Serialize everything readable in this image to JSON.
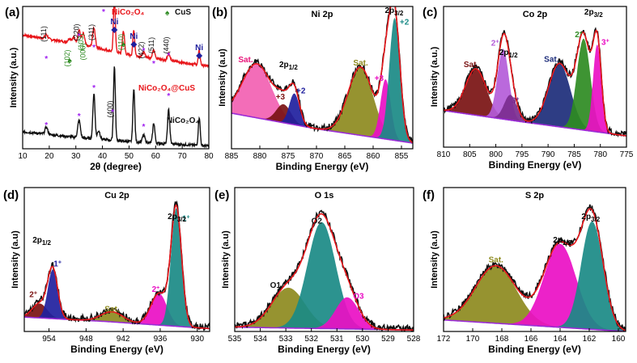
{
  "colors": {
    "red": "#e8161b",
    "black": "#111111",
    "magenta": "#ea0fc4",
    "green": "#2e8b22",
    "blue": "#1f1f9e",
    "darkred": "#7a1212",
    "olive": "#8d8a1e",
    "teal": "#1a8a86",
    "purple": "#7b2d8f",
    "navy": "#1c2c7a",
    "pink": "#f6a1c6",
    "violet": "#b45cd9",
    "lavender": "#b98ad6"
  },
  "chart_data": [
    {
      "id": "a",
      "type": "line",
      "panel_label": "(a)",
      "xlabel": "2θ (degree)",
      "ylabel": "Intensity (a.u.)",
      "xlim": [
        10,
        80
      ],
      "xticks": [
        10,
        20,
        30,
        40,
        50,
        60,
        70,
        80
      ],
      "reversed": false,
      "legend": [
        {
          "symbol": "*",
          "label": "NiCo2O4",
          "color": "#a020f0"
        },
        {
          "symbol": "♠",
          "label": "CuS",
          "color": "#2e8b22"
        }
      ],
      "series": [
        {
          "name": "NiCo2O4@CuS",
          "color": "#e8161b",
          "offset": 0.58,
          "baseline": [
            [
              10,
              0.8
            ],
            [
              30,
              0.74
            ],
            [
              50,
              0.66
            ],
            [
              80,
              0.58
            ]
          ],
          "peaks": [
            [
              18.9,
              0.03,
              0.5
            ],
            [
              27.7,
              0.03,
              0.6
            ],
            [
              29.3,
              0.04,
              0.5
            ],
            [
              31.2,
              0.1,
              0.5
            ],
            [
              32.8,
              0.08,
              0.5
            ],
            [
              36.8,
              0.14,
              0.5
            ],
            [
              44.5,
              0.38,
              0.35
            ],
            [
              47.9,
              0.16,
              0.4
            ],
            [
              51.8,
              0.18,
              0.35
            ],
            [
              55.5,
              0.03,
              0.5
            ],
            [
              59.3,
              0.06,
              0.5
            ],
            [
              64.9,
              0.05,
              0.5
            ],
            [
              76.4,
              0.1,
              0.35
            ]
          ],
          "curve_label": "NiCo2O4@CuS"
        },
        {
          "name": "NiCo2O4",
          "color": "#111111",
          "offset": 0.0,
          "baseline": [
            [
              10,
              0.12
            ],
            [
              30,
              0.08
            ],
            [
              50,
              0.05
            ],
            [
              80,
              0.02
            ]
          ],
          "peaks": [
            [
              18.9,
              0.05,
              0.5
            ],
            [
              31.2,
              0.12,
              0.5
            ],
            [
              36.8,
              0.32,
              0.4
            ],
            [
              38.6,
              0.06,
              0.5
            ],
            [
              44.5,
              0.52,
              0.35
            ],
            [
              51.8,
              0.38,
              0.35
            ],
            [
              55.5,
              0.05,
              0.5
            ],
            [
              59.3,
              0.14,
              0.4
            ],
            [
              64.9,
              0.24,
              0.4
            ],
            [
              76.4,
              0.2,
              0.35
            ]
          ],
          "curve_label": "NiCo2O4"
        }
      ],
      "annotations": [
        {
          "text": "(111)",
          "x": 18.9
        },
        {
          "text": "(102)",
          "x": 27.7
        },
        {
          "text": "(220)",
          "x": 31.2
        },
        {
          "text": "(103)",
          "x": 32.8
        },
        {
          "text": "(006)",
          "x": 33.6
        },
        {
          "text": "(311)",
          "x": 36.8
        },
        {
          "text": "(400)",
          "x": 43.8
        },
        {
          "text": "Ni",
          "x": 44.5
        },
        {
          "text": "(110)",
          "x": 47.9
        },
        {
          "text": "Ni",
          "x": 51.8
        },
        {
          "text": "(422)",
          "x": 55.5
        },
        {
          "text": "(511)",
          "x": 59.3
        },
        {
          "text": "(440)",
          "x": 64.9
        },
        {
          "text": "Ni",
          "x": 76.4
        }
      ]
    },
    {
      "id": "b",
      "type": "area",
      "panel_label": "(b)",
      "title": "Ni 2p",
      "xlabel": "Binding Energy (eV)",
      "ylabel": "Intensity (a.u)",
      "xlim": [
        885,
        853
      ],
      "xticks": [
        885,
        880,
        875,
        870,
        865,
        860,
        855
      ],
      "reversed": true,
      "baseline": [
        [
          885,
          0.25
        ],
        [
          870,
          0.14
        ],
        [
          853,
          0.04
        ]
      ],
      "components": [
        {
          "label": "Sat.",
          "center": 880.5,
          "height": 0.38,
          "width": 2.6,
          "color": "#f261b2"
        },
        {
          "label": "+3",
          "center": 875.8,
          "height": 0.13,
          "width": 1.3,
          "color": "#7a1212"
        },
        {
          "label": "+2",
          "center": 873.9,
          "height": 0.22,
          "width": 0.9,
          "color": "#1f1f9e"
        },
        {
          "label": "Sat.",
          "center": 862.2,
          "height": 0.48,
          "width": 2.2,
          "color": "#8d8a1e"
        },
        {
          "label": "+3",
          "center": 857.8,
          "height": 0.42,
          "width": 0.9,
          "color": "#ea0fc4"
        },
        {
          "label": "+2",
          "center": 856.2,
          "height": 0.86,
          "width": 0.95,
          "color": "#1a8a86"
        }
      ],
      "peak_labels": [
        {
          "text": "2p1/2",
          "x": 873.8
        },
        {
          "text": "2p3/2",
          "x": 856.3
        }
      ]
    },
    {
      "id": "c",
      "type": "area",
      "panel_label": "(c)",
      "title": "Co 2p",
      "xlabel": "Binding Energy (eV)",
      "ylabel": "Intensity (a.u.)",
      "xlim": [
        810,
        775
      ],
      "xticks": [
        810,
        805,
        800,
        795,
        790,
        785,
        780,
        775
      ],
      "reversed": true,
      "baseline": [
        [
          810,
          0.26
        ],
        [
          795,
          0.18
        ],
        [
          775,
          0.08
        ]
      ],
      "components": [
        {
          "label": "Sat.",
          "center": 803.8,
          "height": 0.33,
          "width": 2.0,
          "color": "#7a1212"
        },
        {
          "label": "2+",
          "center": 798.6,
          "height": 0.5,
          "width": 1.1,
          "color": "#b45cd9"
        },
        {
          "label": "3+",
          "center": 797.2,
          "height": 0.18,
          "width": 1.2,
          "color": "#7b2d8f"
        },
        {
          "label": "Sat.",
          "center": 787.8,
          "height": 0.45,
          "width": 2.1,
          "color": "#1c2c7a"
        },
        {
          "label": "2+",
          "center": 783.2,
          "height": 0.65,
          "width": 1.3,
          "color": "#2e8b22"
        },
        {
          "label": "3+",
          "center": 780.6,
          "height": 0.62,
          "width": 0.8,
          "color": "#ea0fc4"
        }
      ],
      "peak_labels": [
        {
          "text": "2p1/2",
          "x": 798.2
        },
        {
          "text": "2p3/2",
          "x": 781.3
        }
      ]
    },
    {
      "id": "d",
      "type": "area",
      "panel_label": "(d)",
      "title": "Cu 2p",
      "xlabel": "Binding Energy (eV)",
      "ylabel": "Intensity (a.u)",
      "xlim": [
        958,
        928
      ],
      "xticks": [
        954,
        948,
        942,
        936,
        930
      ],
      "reversed": true,
      "baseline": [
        [
          958,
          0.1
        ],
        [
          945,
          0.07
        ],
        [
          928,
          0.02
        ]
      ],
      "components": [
        {
          "label": "2+",
          "center": 955.5,
          "height": 0.1,
          "width": 1.2,
          "color": "#7a1212"
        },
        {
          "label": "1+",
          "center": 953.4,
          "height": 0.34,
          "width": 0.8,
          "color": "#1f1f9e"
        },
        {
          "label": "Sat.",
          "center": 943.8,
          "height": 0.07,
          "width": 1.8,
          "color": "#8d8a1e"
        },
        {
          "label": "2+",
          "center": 936.2,
          "height": 0.22,
          "width": 1.3,
          "color": "#ea0fc4"
        },
        {
          "label": "1+",
          "center": 933.4,
          "height": 0.82,
          "width": 0.85,
          "color": "#1a8a86"
        }
      ],
      "peak_labels": [
        {
          "text": "2p1/2",
          "x": 953.6
        },
        {
          "text": "2p3/2",
          "x": 933.3
        }
      ]
    },
    {
      "id": "e",
      "type": "area",
      "panel_label": "(e)",
      "title": "O 1s",
      "xlabel": "Binding Energy (eV)",
      "ylabel": "Intensity (a.u)",
      "xlim": [
        535,
        528
      ],
      "xticks": [
        535,
        534,
        533,
        532,
        531,
        530,
        529,
        528
      ],
      "reversed": true,
      "baseline": [
        [
          535,
          0.03
        ],
        [
          528,
          0.01
        ]
      ],
      "components": [
        {
          "label": "O1",
          "center": 532.9,
          "height": 0.28,
          "width": 0.65,
          "color": "#8d8a1e"
        },
        {
          "label": "O2",
          "center": 531.6,
          "height": 0.74,
          "width": 0.55,
          "color": "#1a8a86"
        },
        {
          "label": "O3",
          "center": 530.6,
          "height": 0.22,
          "width": 0.45,
          "color": "#ea0fc4"
        }
      ],
      "peak_labels": []
    },
    {
      "id": "f",
      "type": "area",
      "panel_label": "(f)",
      "title": "S 2p",
      "xlabel": "Binding Energy (eV)",
      "ylabel": "Intensity (a.u)",
      "xlim": [
        172,
        159.5
      ],
      "xticks": [
        172,
        170,
        168,
        166,
        164,
        162,
        160
      ],
      "reversed": true,
      "baseline": [
        [
          172,
          0.08
        ],
        [
          159.5,
          0.0
        ]
      ],
      "components": [
        {
          "label": "Sat.",
          "center": 168.4,
          "height": 0.4,
          "width": 1.4,
          "color": "#8d8a1e"
        },
        {
          "label": "2p1/2",
          "center": 164.0,
          "height": 0.58,
          "width": 1.1,
          "color": "#ea0fc4"
        },
        {
          "label": "2p3/2",
          "center": 161.8,
          "height": 0.75,
          "width": 0.75,
          "color": "#1a8a86"
        }
      ],
      "peak_labels": [
        {
          "text": "2p1/2",
          "x": 163.3
        },
        {
          "text": "2p3/2",
          "x": 161.9
        }
      ]
    }
  ]
}
